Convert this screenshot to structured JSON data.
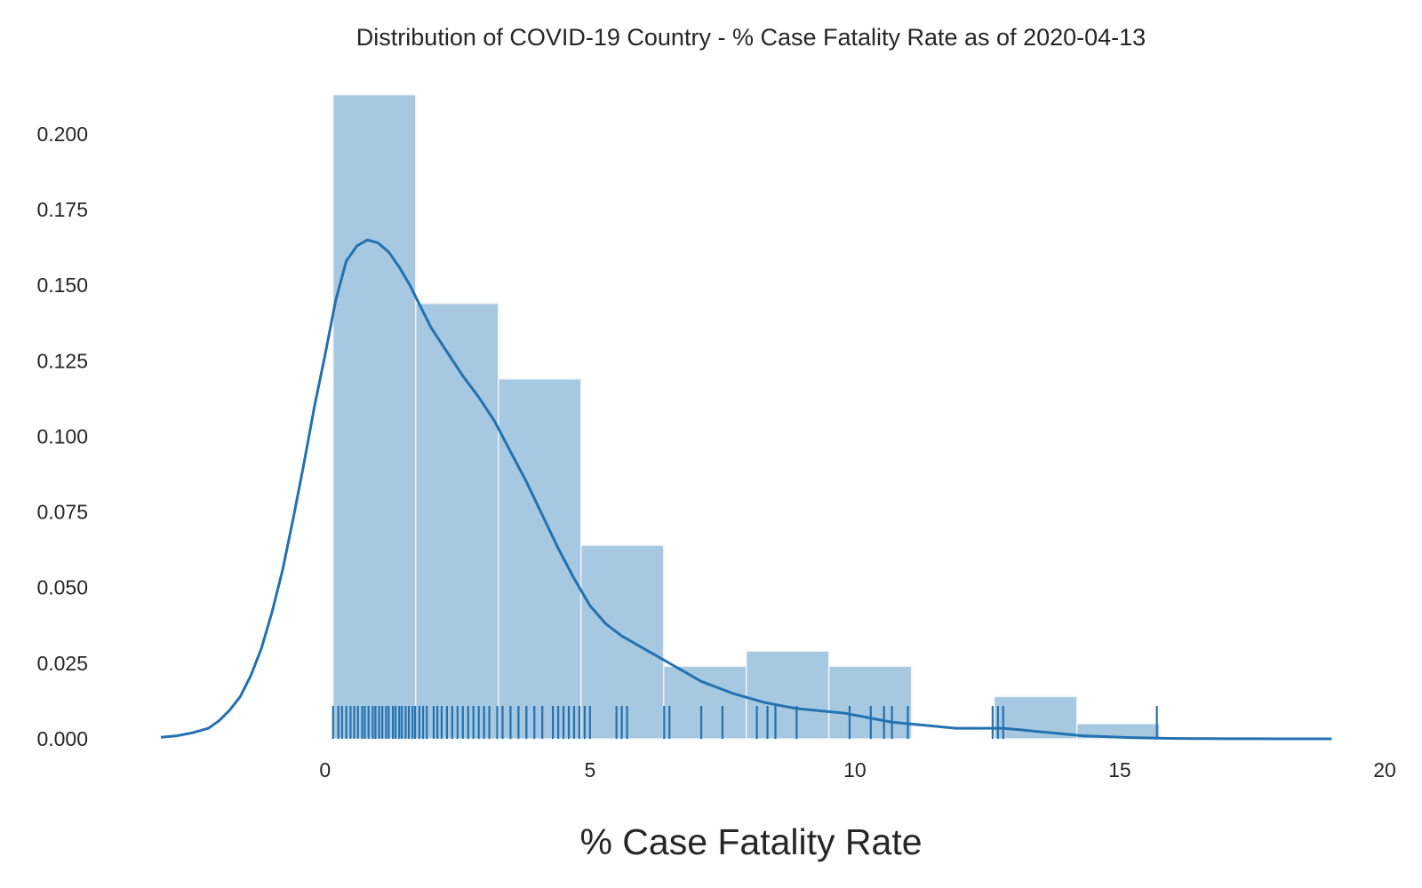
{
  "chart_data": {
    "type": "histogram",
    "title": "Distribution of COVID-19 Country - % Case Fatality Rate as of 2020-04-13",
    "xlabel": "% Case Fatality Rate",
    "ylabel": "",
    "xlim": [
      -3.1,
      20
    ],
    "ylim": [
      0,
      0.2135
    ],
    "xticks": [
      0,
      5,
      10,
      15,
      20
    ],
    "xtick_labels": [
      "0",
      "5",
      "10",
      "15",
      "20"
    ],
    "yticks": [
      0,
      0.025,
      0.05,
      0.075,
      0.1,
      0.125,
      0.15,
      0.175,
      0.2
    ],
    "ytick_labels": [
      "0.000",
      "0.025",
      "0.050",
      "0.075",
      "0.100",
      "0.125",
      "0.150",
      "0.175",
      "0.200"
    ],
    "grid": false,
    "bins": [
      {
        "x0": 0.15,
        "x1": 1.71,
        "density": 0.213
      },
      {
        "x0": 1.71,
        "x1": 3.27,
        "density": 0.144
      },
      {
        "x0": 3.27,
        "x1": 4.83,
        "density": 0.119
      },
      {
        "x0": 4.83,
        "x1": 6.39,
        "density": 0.064
      },
      {
        "x0": 6.39,
        "x1": 7.95,
        "density": 0.024
      },
      {
        "x0": 7.95,
        "x1": 9.51,
        "density": 0.029
      },
      {
        "x0": 9.51,
        "x1": 11.07,
        "density": 0.024
      },
      {
        "x0": 11.07,
        "x1": 12.63,
        "density": 0.0
      },
      {
        "x0": 12.63,
        "x1": 14.19,
        "density": 0.014
      },
      {
        "x0": 14.19,
        "x1": 15.75,
        "density": 0.005
      }
    ],
    "kde": {
      "x": [
        -3.1,
        -2.8,
        -2.5,
        -2.2,
        -2.0,
        -1.8,
        -1.6,
        -1.4,
        -1.2,
        -1.0,
        -0.8,
        -0.6,
        -0.4,
        -0.2,
        0.0,
        0.2,
        0.4,
        0.6,
        0.8,
        1.0,
        1.2,
        1.4,
        1.6,
        1.8,
        2.0,
        2.3,
        2.6,
        2.9,
        3.2,
        3.5,
        3.8,
        4.1,
        4.4,
        4.7,
        5.0,
        5.3,
        5.6,
        5.9,
        6.2,
        6.5,
        6.8,
        7.1,
        7.4,
        7.7,
        8.0,
        8.3,
        8.6,
        8.9,
        9.2,
        9.5,
        9.8,
        10.1,
        10.4,
        10.7,
        11.0,
        11.3,
        11.6,
        11.9,
        12.2,
        12.5,
        12.8,
        13.1,
        13.4,
        13.7,
        14.0,
        14.3,
        14.6,
        14.9,
        15.2,
        15.5,
        15.8,
        16.1,
        16.4,
        16.7,
        17.0,
        17.3,
        17.6,
        17.9,
        18.2,
        18.6,
        19.0
      ],
      "y": [
        0.0005,
        0.001,
        0.002,
        0.0035,
        0.006,
        0.0095,
        0.014,
        0.021,
        0.03,
        0.042,
        0.056,
        0.073,
        0.091,
        0.11,
        0.127,
        0.145,
        0.158,
        0.163,
        0.165,
        0.164,
        0.161,
        0.156,
        0.15,
        0.143,
        0.136,
        0.128,
        0.12,
        0.113,
        0.105,
        0.095,
        0.085,
        0.074,
        0.063,
        0.053,
        0.044,
        0.038,
        0.034,
        0.031,
        0.028,
        0.025,
        0.022,
        0.019,
        0.017,
        0.015,
        0.0135,
        0.012,
        0.011,
        0.01,
        0.0095,
        0.009,
        0.0085,
        0.0075,
        0.0065,
        0.0055,
        0.005,
        0.0045,
        0.004,
        0.0035,
        0.0035,
        0.0035,
        0.0035,
        0.003,
        0.0025,
        0.002,
        0.0015,
        0.001,
        0.0008,
        0.0006,
        0.0004,
        0.0003,
        0.0002,
        0.0001,
        8e-05,
        6e-05,
        4e-05,
        3e-05,
        2e-05,
        1e-05,
        5e-06,
        2e-06,
        0.0
      ]
    },
    "rug": [
      0.15,
      0.25,
      0.32,
      0.4,
      0.48,
      0.55,
      0.62,
      0.7,
      0.75,
      0.82,
      0.9,
      0.95,
      1.02,
      1.08,
      1.15,
      1.2,
      1.28,
      1.33,
      1.4,
      1.45,
      1.52,
      1.58,
      1.65,
      1.7,
      1.78,
      1.85,
      1.92,
      2.05,
      2.12,
      2.2,
      2.3,
      2.4,
      2.5,
      2.6,
      2.7,
      2.8,
      2.9,
      3.0,
      3.1,
      3.25,
      3.35,
      3.5,
      3.65,
      3.8,
      3.95,
      4.1,
      4.3,
      4.4,
      4.5,
      4.6,
      4.7,
      4.8,
      4.9,
      5.0,
      5.5,
      5.6,
      5.7,
      6.4,
      6.5,
      7.1,
      7.5,
      8.15,
      8.35,
      8.5,
      8.9,
      9.9,
      10.3,
      10.55,
      10.7,
      11.0,
      12.6,
      12.7,
      12.8,
      15.7
    ],
    "colors": {
      "bar_fill": "#a6c8e0",
      "bar_edge": "#eef4f9",
      "line": "#2471b0",
      "rug": "#2471b0"
    }
  }
}
